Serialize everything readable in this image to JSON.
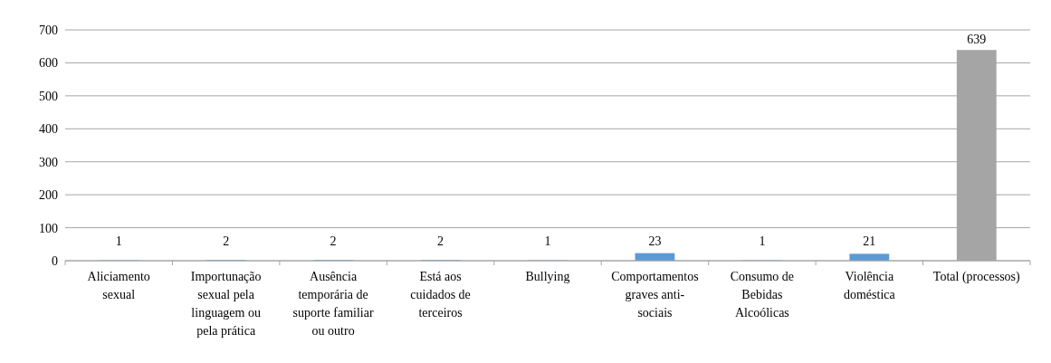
{
  "chart_data": {
    "type": "bar",
    "categories": [
      "Aliciamento sexual",
      "Importunação sexual pela linguagem ou pela prática",
      "Ausência temporária de suporte familiar ou outro",
      "Está aos cuidados de terceiros",
      "Bullying",
      "Comportamentos graves anti-sociais",
      "Consumo de Bebidas Alcoólicas",
      "Violência doméstica",
      "Total (processos)"
    ],
    "values": [
      1,
      2,
      2,
      2,
      1,
      23,
      1,
      21,
      639
    ],
    "colors": [
      "#5b9bd5",
      "#5b9bd5",
      "#5b9bd5",
      "#5b9bd5",
      "#5b9bd5",
      "#5b9bd5",
      "#5b9bd5",
      "#5b9bd5",
      "#a5a5a5"
    ],
    "ylim": [
      0,
      700
    ],
    "yticks": [
      0,
      100,
      200,
      300,
      400,
      500,
      600,
      700
    ],
    "grid": "y",
    "data_labels": true
  }
}
